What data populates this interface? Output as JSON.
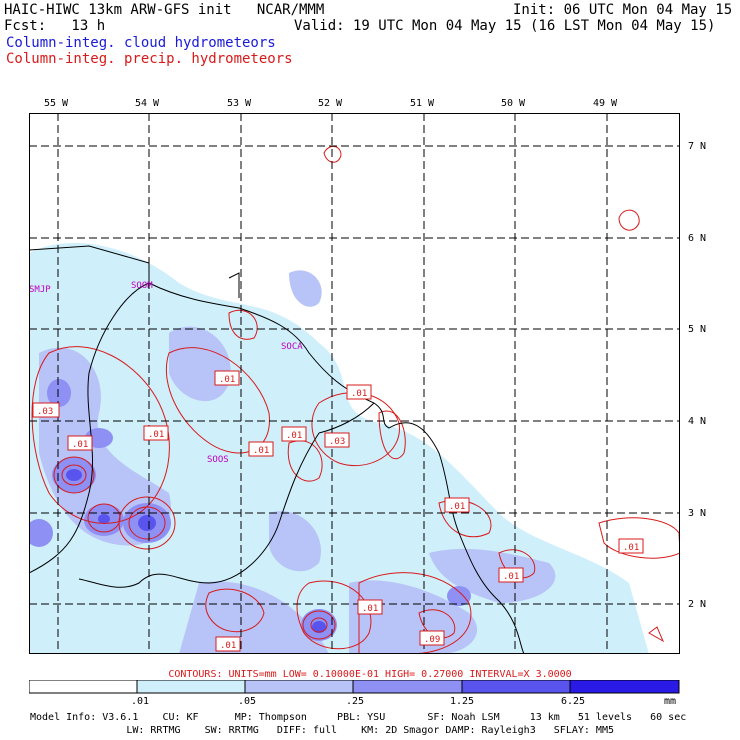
{
  "header": {
    "title_left": "HAIC-HIWC 13km ARW-GFS init   NCAR/MMM",
    "init": "Init: 06 UTC Mon 04 May 15",
    "fcst": "Fcst:   13 h",
    "valid": "Valid: 19 UTC Mon 04 May 15 (16 LST Mon 04 May 15)",
    "field_cloud": "Column-integ. cloud hydrometeors",
    "field_precip": "Column-integ. precip. hydrometeors"
  },
  "map": {
    "lon_labels": [
      "55 W",
      "54 W",
      "53 W",
      "52 W",
      "51 W",
      "50 W",
      "49 W"
    ],
    "lat_labels": [
      "7 N",
      "6 N",
      "5 N",
      "4 N",
      "3 N",
      "2 N"
    ],
    "stations": [
      "SMJP",
      "SOOM",
      "SOCA",
      "SOOS"
    ],
    "contour_boxes": [
      ".01",
      ".03",
      ".01",
      ".01",
      ".01",
      ".01",
      ".01",
      ".03",
      ".01",
      ".01",
      ".01",
      ".01",
      ".01",
      ".09",
      ".01"
    ]
  },
  "contour_info": "CONTOURS:  UNITS=mm   LOW= 0.10000E-01   HIGH= 0.27000     INTERVAL=X  3.0000",
  "colorbar": {
    "labels": [
      ".01",
      ".05",
      ".25",
      "1.25",
      "6.25"
    ],
    "unit": "mm",
    "colors": [
      "#ffffff",
      "#cfeffb",
      "#b8c4f8",
      "#8e90f4",
      "#5a54ee",
      "#2a1ae6"
    ]
  },
  "model_info": {
    "line1": "Model Info: V3.6.1    CU: KF      MP: Thompson     PBL: YSU       SF: Noah LSM     13 km   51 levels   60 sec",
    "line2": "                LW: RRTMG    SW: RRTMG   DIFF: full    KM: 2D Smagor DAMP: Rayleigh3   SFLAY: MM5"
  }
}
